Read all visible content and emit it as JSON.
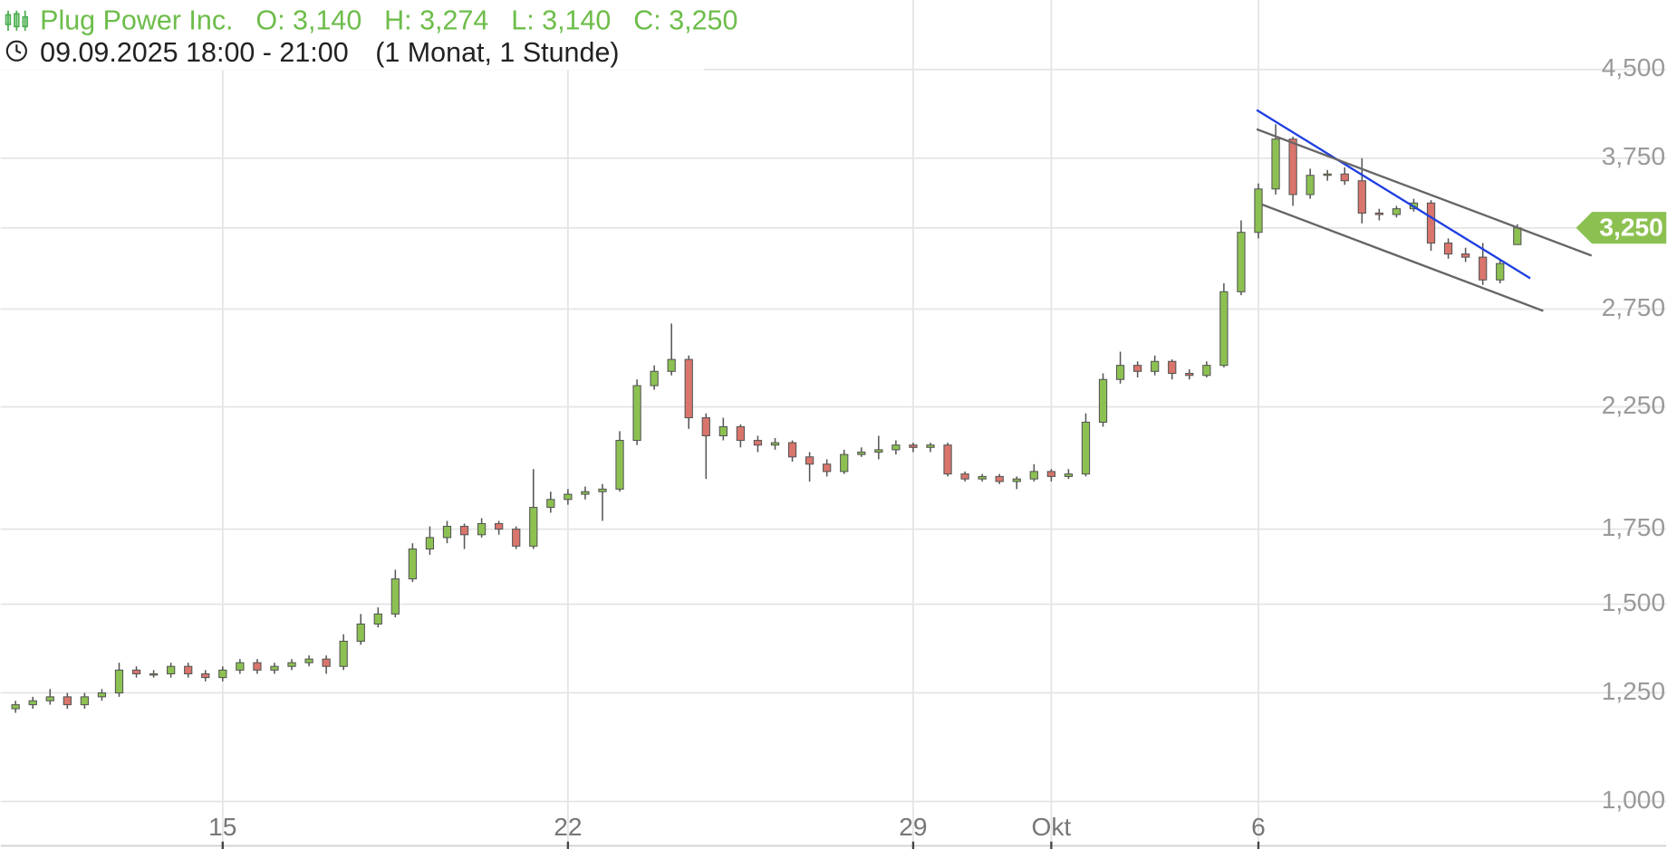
{
  "chart_data": {
    "type": "candlestick",
    "title": "Plug Power Inc.",
    "ohlc_labels": [
      "O: 3,140",
      "H: 3,274",
      "L: 3,140",
      "C: 3,250"
    ],
    "subtitle": "09.09.2025 18:00 - 21:00",
    "period": "(1 Monat, 1 Stunde)",
    "up_color": "#8cc152",
    "down_color": "#d9756c",
    "log_scale": true,
    "grid": true,
    "categories": [
      null,
      null,
      null,
      null,
      null,
      null,
      null,
      null,
      null,
      null,
      null,
      null,
      "15",
      null,
      null,
      null,
      null,
      null,
      null,
      null,
      null,
      null,
      null,
      null,
      null,
      null,
      null,
      null,
      null,
      null,
      null,
      null,
      "22",
      null,
      null,
      null,
      null,
      null,
      null,
      null,
      null,
      null,
      null,
      null,
      null,
      null,
      null,
      null,
      null,
      null,
      null,
      null,
      "29",
      null,
      null,
      null,
      null,
      null,
      null,
      null,
      "Okt",
      null,
      null,
      null,
      null,
      null,
      null,
      null,
      null,
      null,
      null,
      null,
      "6",
      null,
      null,
      null,
      null,
      null,
      null,
      null,
      null,
      null,
      null,
      null,
      null,
      null,
      null,
      null
    ],
    "open": [
      1.21,
      1.22,
      1.23,
      1.24,
      1.22,
      1.24,
      1.25,
      1.31,
      1.3,
      1.3,
      1.32,
      1.3,
      1.29,
      1.31,
      1.33,
      1.31,
      1.32,
      1.33,
      1.34,
      1.32,
      1.39,
      1.44,
      1.47,
      1.58,
      1.68,
      1.72,
      1.76,
      1.73,
      1.77,
      1.75,
      1.69,
      1.83,
      1.86,
      1.88,
      1.89,
      1.9,
      2.1,
      2.35,
      2.42,
      2.48,
      2.2,
      2.12,
      2.16,
      2.1,
      2.08,
      2.09,
      2.03,
      2.0,
      1.97,
      2.04,
      2.05,
      2.06,
      2.08,
      2.07,
      2.08,
      1.96,
      1.94,
      1.95,
      1.93,
      1.94,
      1.97,
      1.95,
      1.96,
      2.18,
      2.38,
      2.45,
      2.42,
      2.47,
      2.41,
      2.4,
      2.45,
      2.85,
      3.22,
      3.52,
      3.9,
      3.48,
      3.62,
      3.63,
      3.58,
      3.35,
      3.34,
      3.38,
      3.42,
      3.15,
      3.08,
      3.06,
      2.92,
      3.14
    ],
    "high": [
      1.23,
      1.24,
      1.26,
      1.25,
      1.25,
      1.26,
      1.33,
      1.32,
      1.31,
      1.33,
      1.33,
      1.31,
      1.32,
      1.34,
      1.34,
      1.33,
      1.34,
      1.35,
      1.35,
      1.41,
      1.47,
      1.49,
      1.61,
      1.7,
      1.76,
      1.78,
      1.77,
      1.79,
      1.78,
      1.76,
      1.98,
      1.89,
      1.9,
      1.91,
      1.92,
      2.14,
      2.38,
      2.45,
      2.67,
      2.5,
      2.22,
      2.2,
      2.17,
      2.12,
      2.11,
      2.1,
      2.05,
      2.02,
      2.06,
      2.07,
      2.12,
      2.1,
      2.09,
      2.09,
      2.09,
      1.97,
      1.96,
      1.96,
      1.95,
      2.0,
      1.98,
      1.98,
      2.22,
      2.41,
      2.52,
      2.47,
      2.5,
      2.48,
      2.43,
      2.47,
      2.9,
      3.3,
      3.56,
      4.02,
      3.92,
      3.67,
      3.66,
      3.68,
      3.75,
      3.38,
      3.4,
      3.45,
      3.44,
      3.18,
      3.12,
      3.15,
      3.05,
      3.274
    ],
    "low": [
      1.2,
      1.21,
      1.22,
      1.21,
      1.21,
      1.23,
      1.24,
      1.29,
      1.29,
      1.29,
      1.29,
      1.28,
      1.28,
      1.3,
      1.3,
      1.3,
      1.31,
      1.32,
      1.3,
      1.31,
      1.38,
      1.43,
      1.46,
      1.57,
      1.66,
      1.7,
      1.68,
      1.72,
      1.73,
      1.68,
      1.68,
      1.81,
      1.84,
      1.86,
      1.78,
      1.89,
      2.08,
      2.33,
      2.4,
      2.15,
      1.94,
      2.1,
      2.07,
      2.05,
      2.06,
      2.01,
      1.93,
      1.95,
      1.96,
      2.03,
      2.02,
      2.04,
      2.05,
      2.05,
      1.95,
      1.93,
      1.93,
      1.92,
      1.9,
      1.93,
      1.93,
      1.94,
      1.95,
      2.16,
      2.36,
      2.39,
      2.4,
      2.38,
      2.38,
      2.39,
      2.44,
      2.83,
      3.18,
      3.48,
      3.4,
      3.45,
      3.58,
      3.55,
      3.28,
      3.3,
      3.32,
      3.36,
      3.1,
      3.05,
      3.03,
      2.89,
      2.9,
      3.14
    ],
    "close": [
      1.22,
      1.23,
      1.24,
      1.22,
      1.24,
      1.25,
      1.31,
      1.3,
      1.3,
      1.32,
      1.3,
      1.29,
      1.31,
      1.33,
      1.31,
      1.32,
      1.33,
      1.34,
      1.32,
      1.39,
      1.44,
      1.47,
      1.58,
      1.68,
      1.72,
      1.76,
      1.73,
      1.77,
      1.75,
      1.69,
      1.83,
      1.86,
      1.88,
      1.89,
      1.9,
      2.1,
      2.35,
      2.42,
      2.48,
      2.2,
      2.12,
      2.16,
      2.1,
      2.08,
      2.09,
      2.03,
      2.0,
      1.97,
      2.04,
      2.05,
      2.06,
      2.08,
      2.07,
      2.08,
      1.96,
      1.94,
      1.95,
      1.93,
      1.94,
      1.97,
      1.95,
      1.96,
      2.18,
      2.38,
      2.45,
      2.42,
      2.47,
      2.41,
      2.4,
      2.45,
      2.85,
      3.22,
      3.52,
      3.9,
      3.48,
      3.62,
      3.63,
      3.58,
      3.35,
      3.34,
      3.38,
      3.42,
      3.15,
      3.08,
      3.06,
      2.92,
      3.02,
      3.25
    ],
    "ylim": [
      0.917,
      5.19
    ],
    "yticks": [
      {
        "value": 1.0,
        "label": "1,000"
      },
      {
        "value": 1.25,
        "label": "1,250"
      },
      {
        "value": 1.5,
        "label": "1,500"
      },
      {
        "value": 1.75,
        "label": "1,750"
      },
      {
        "value": 2.25,
        "label": "2,250"
      },
      {
        "value": 2.75,
        "label": "2,750"
      },
      {
        "value": 3.75,
        "label": "3,750"
      },
      {
        "value": 4.5,
        "label": "4,500"
      }
    ],
    "last_price": {
      "value": 3.25,
      "label": "3,250"
    },
    "trendlines": [
      {
        "color": "#1f3fe0",
        "x": [
          71.9,
          87.75
        ],
        "y": [
          4.14,
          2.93
        ]
      },
      {
        "color": "#666666",
        "x": [
          71.9,
          91.3
        ],
        "y": [
          3.98,
          3.07
        ]
      },
      {
        "color": "#666666",
        "x": [
          72.2,
          88.5
        ],
        "y": [
          3.41,
          2.74
        ]
      }
    ]
  }
}
